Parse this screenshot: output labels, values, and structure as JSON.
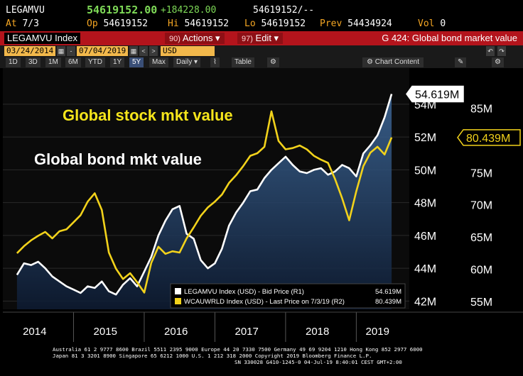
{
  "quote": {
    "ticker": "LEGAMVU",
    "last": "54619152.00",
    "change": "+184228.00",
    "bid_ask": "54619152/--",
    "at_label": "At",
    "at_value": "7/3",
    "op_label": "Op",
    "op_value": "54619152",
    "hi_label": "Hi",
    "hi_value": "54619152",
    "lo_label": "Lo",
    "lo_value": "54619152",
    "prev_label": "Prev",
    "prev_value": "54434924",
    "vol_label": "Vol",
    "vol_value": "0"
  },
  "toolbar": {
    "index": "LEGAMVU Index",
    "actions_num": "90)",
    "actions_label": "Actions ▾",
    "edit_num": "97)",
    "edit_label": "Edit ▾",
    "title": "G 424: Global bond market value"
  },
  "dates": {
    "start": "03/24/2014",
    "end": "07/04/2019",
    "currency": "USD"
  },
  "periods": [
    "1D",
    "3D",
    "1M",
    "6M",
    "YTD",
    "1Y",
    "5Y",
    "Max"
  ],
  "active_period": "5Y",
  "frequency": "Daily ▾",
  "table_label": "Table",
  "chart_content_label": "Chart Content",
  "chart_data": {
    "type": "line",
    "annotations": [
      "Global stock mkt value",
      "Global bond mkt value"
    ],
    "x_ticks": [
      "2014",
      "2015",
      "2016",
      "2017",
      "2018",
      "2019"
    ],
    "left_axis": {
      "ticks": [
        "42M",
        "44M",
        "46M",
        "48M",
        "50M",
        "52M",
        "54M"
      ],
      "ylim": [
        41.5,
        56.2
      ]
    },
    "right_axis": {
      "ticks": [
        "55M",
        "60M",
        "65M",
        "70M",
        "75M",
        "80M",
        "85M"
      ],
      "ylim": [
        53.8,
        91.2
      ]
    },
    "series": [
      {
        "name": "LEGAMVU Index (USD) - Bid Price (R1)",
        "axis": "left",
        "color": "#ffffff",
        "last_label": "54.619M",
        "last_value": "54.619M",
        "x": [
          2014.2,
          2014.3,
          2014.4,
          2014.5,
          2014.6,
          2014.7,
          2014.8,
          2014.9,
          2015.0,
          2015.1,
          2015.2,
          2015.3,
          2015.4,
          2015.5,
          2015.6,
          2015.7,
          2015.8,
          2015.9,
          2016.0,
          2016.1,
          2016.2,
          2016.3,
          2016.4,
          2016.5,
          2016.6,
          2016.7,
          2016.8,
          2016.9,
          2017.0,
          2017.1,
          2017.2,
          2017.3,
          2017.4,
          2017.5,
          2017.6,
          2017.7,
          2017.8,
          2017.9,
          2018.0,
          2018.1,
          2018.2,
          2018.3,
          2018.4,
          2018.5,
          2018.6,
          2018.7,
          2018.8,
          2018.9,
          2019.0,
          2019.1,
          2019.2,
          2019.3,
          2019.4,
          2019.5
        ],
        "y": [
          43.6,
          44.3,
          44.2,
          44.4,
          44.0,
          43.5,
          43.2,
          42.9,
          42.7,
          42.5,
          42.9,
          42.8,
          43.2,
          42.6,
          42.4,
          43.0,
          43.4,
          42.9,
          43.8,
          44.7,
          46.0,
          46.9,
          47.6,
          47.8,
          46.1,
          45.8,
          44.5,
          44.0,
          44.3,
          45.2,
          46.6,
          47.4,
          48.0,
          48.7,
          48.8,
          49.5,
          50.0,
          50.4,
          50.8,
          50.3,
          49.9,
          49.8,
          50.0,
          50.1,
          49.7,
          49.9,
          50.3,
          50.1,
          49.6,
          51.0,
          51.5,
          52.1,
          53.2,
          54.62
        ]
      },
      {
        "name": "WCAUWRLD Index (USD) - Last Price on 7/3/19 (R2)",
        "axis": "right",
        "color": "#f2d21b",
        "last_label": "80.439M",
        "last_value": "80.439M",
        "x": [
          2014.2,
          2014.3,
          2014.4,
          2014.5,
          2014.6,
          2014.7,
          2014.8,
          2014.9,
          2015.0,
          2015.1,
          2015.2,
          2015.3,
          2015.4,
          2015.5,
          2015.6,
          2015.7,
          2015.8,
          2015.9,
          2016.0,
          2016.1,
          2016.2,
          2016.3,
          2016.4,
          2016.5,
          2016.6,
          2016.7,
          2016.8,
          2016.9,
          2017.0,
          2017.1,
          2017.2,
          2017.3,
          2017.4,
          2017.5,
          2017.6,
          2017.7,
          2017.8,
          2017.9,
          2018.0,
          2018.1,
          2018.2,
          2018.3,
          2018.4,
          2018.5,
          2018.6,
          2018.7,
          2018.8,
          2018.9,
          2019.0,
          2019.1,
          2019.2,
          2019.3,
          2019.4,
          2019.5
        ],
        "y": [
          62.5,
          63.6,
          64.5,
          65.2,
          65.8,
          64.8,
          65.9,
          66.2,
          67.3,
          68.4,
          70.5,
          71.8,
          69.2,
          62.6,
          60.1,
          58.5,
          59.4,
          58.0,
          56.4,
          61.0,
          63.5,
          62.4,
          62.8,
          62.6,
          64.8,
          66.5,
          68.3,
          69.6,
          70.5,
          71.6,
          73.4,
          74.6,
          76.0,
          77.6,
          78.0,
          79.0,
          84.5,
          79.9,
          78.6,
          78.8,
          79.2,
          78.6,
          77.6,
          77.0,
          76.5,
          74.0,
          71.0,
          67.6,
          72.1,
          76.0,
          78.1,
          79.0,
          77.8,
          80.44
        ]
      }
    ]
  },
  "footer": {
    "line1": "Australia 61 2 9777 8600 Brazil 5511 2395 9000 Europe 44 20 7330 7500 Germany 49 69 9204 1210 Hong Kong 852 2977 6000",
    "line2": "Japan 81 3 3201 8900        Singapore 65 6212 1000        U.S. 1 212 318 2000             Copyright 2019 Bloomberg Finance L.P.",
    "line3": "SN 330028 G410-1245-0 04-Jul-19  8:40:01 CEST GMT+2:00"
  }
}
